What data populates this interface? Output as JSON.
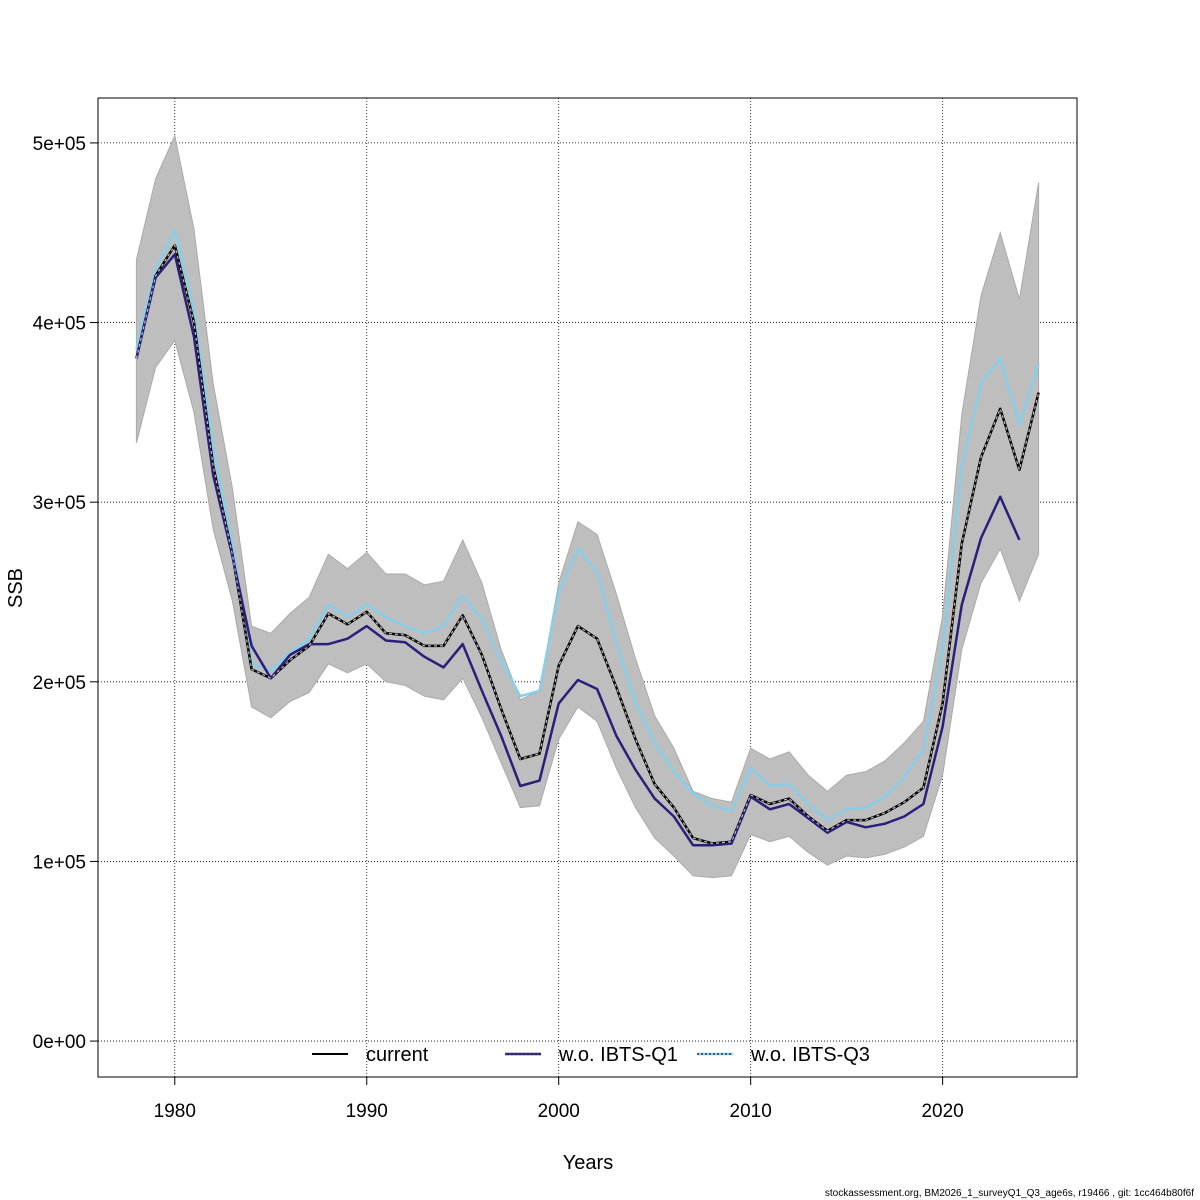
{
  "chart_data": {
    "type": "line",
    "title": "",
    "xlabel": "Years",
    "ylabel": "SSB",
    "xlim": [
      1976,
      2027
    ],
    "ylim": [
      -20000,
      525000
    ],
    "x_ticks": [
      1980,
      1990,
      2000,
      2010,
      2020
    ],
    "x_tick_labels": [
      "1980",
      "1990",
      "2000",
      "2010",
      "2020"
    ],
    "y_ticks": [
      0,
      100000,
      200000,
      300000,
      400000,
      500000
    ],
    "y_tick_labels": [
      "0e+00",
      "1e+05",
      "2e+05",
      "3e+05",
      "4e+05",
      "5e+05"
    ],
    "grid": true,
    "legend_position": "bottom",
    "x": [
      1978,
      1979,
      1980,
      1981,
      1982,
      1983,
      1984,
      1985,
      1986,
      1987,
      1988,
      1989,
      1990,
      1991,
      1992,
      1993,
      1994,
      1995,
      1996,
      1997,
      1998,
      1999,
      2000,
      2001,
      2002,
      2003,
      2004,
      2005,
      2006,
      2007,
      2008,
      2009,
      2010,
      2011,
      2012,
      2013,
      2014,
      2015,
      2016,
      2017,
      2018,
      2019,
      2020,
      2021,
      2022,
      2023,
      2024,
      2025
    ],
    "band": {
      "name": "confidence interval (current)",
      "color": "#bebebe",
      "lower": [
        333000,
        375000,
        390000,
        350000,
        285000,
        245000,
        186000,
        180000,
        189000,
        194000,
        210000,
        205000,
        210000,
        200000,
        198000,
        192000,
        190000,
        202000,
        180000,
        155000,
        130000,
        131000,
        168000,
        186000,
        178000,
        152000,
        130000,
        113000,
        103000,
        92000,
        91000,
        92000,
        115000,
        111000,
        114000,
        105000,
        98000,
        103000,
        102000,
        104000,
        108000,
        114000,
        148000,
        218000,
        255000,
        274000,
        245000,
        271000
      ],
      "upper": [
        435000,
        480000,
        504000,
        452000,
        366000,
        308000,
        231000,
        227000,
        238000,
        247000,
        271000,
        263000,
        272000,
        260000,
        260000,
        254000,
        256000,
        279000,
        255000,
        218000,
        190000,
        195000,
        255000,
        289000,
        282000,
        249000,
        213000,
        181000,
        163000,
        139000,
        135000,
        133000,
        163000,
        157000,
        161000,
        148000,
        139000,
        148000,
        150000,
        156000,
        166000,
        178000,
        237000,
        349000,
        415000,
        450000,
        413000,
        478000
      ]
    },
    "series": [
      {
        "name": "current",
        "color": "#000000",
        "style": "solid",
        "values": [
          380000,
          426000,
          443000,
          400000,
          320000,
          271000,
          207000,
          202000,
          212000,
          220000,
          238000,
          232000,
          239000,
          227000,
          226000,
          220000,
          220000,
          237000,
          215000,
          185000,
          157000,
          160000,
          209000,
          231000,
          224000,
          197000,
          168000,
          143000,
          130000,
          113000,
          110000,
          111000,
          137000,
          132000,
          135000,
          125000,
          117000,
          123000,
          123000,
          127000,
          133000,
          141000,
          188000,
          277000,
          325000,
          352000,
          318000,
          361000
        ]
      },
      {
        "name": "w.o. IBTS-Q1",
        "color": "#2b1f7a",
        "style": "solid",
        "values": [
          380000,
          425000,
          438000,
          392000,
          315000,
          270000,
          220000,
          202000,
          215000,
          221000,
          221000,
          224000,
          231000,
          223000,
          222000,
          214000,
          208000,
          221000,
          195000,
          170000,
          142000,
          145000,
          188000,
          201000,
          196000,
          170000,
          151000,
          135000,
          125000,
          109000,
          109000,
          110000,
          136000,
          129000,
          132000,
          124000,
          116000,
          122000,
          119000,
          121000,
          125000,
          132000,
          175000,
          243000,
          280000,
          303000,
          279000,
          null
        ]
      },
      {
        "name": "w.o. IBTS-Q3",
        "color": "#87ceeb",
        "style": "solid",
        "values": [
          385000,
          430000,
          451000,
          407000,
          330000,
          276000,
          210000,
          206000,
          216000,
          224000,
          243000,
          236000,
          243000,
          236000,
          231000,
          227000,
          231000,
          248000,
          235000,
          212000,
          192000,
          195000,
          250000,
          274000,
          261000,
          222000,
          188000,
          166000,
          150000,
          138000,
          131000,
          128000,
          152000,
          142000,
          143000,
          132000,
          123000,
          129000,
          130000,
          136000,
          147000,
          162000,
          218000,
          320000,
          366000,
          380000,
          343000,
          377000
        ]
      }
    ],
    "overlay_series": {
      "name": "current (dashed overlay)",
      "color": "#bebebe",
      "style": "dashed",
      "of": "current"
    },
    "legend": [
      {
        "label": "current",
        "color": "#000000",
        "style": "solid"
      },
      {
        "label": "w.o. IBTS-Q1",
        "color": "#2b1f7a",
        "style": "solid-dotted"
      },
      {
        "label": "w.o. IBTS-Q3",
        "color": "#87ceeb",
        "style": "dotted-dark"
      }
    ],
    "footer_text": "stockassessment.org, BM2026_1_surveyQ1_Q3_age6s, r19466 , git: 1cc464b80f6f"
  }
}
